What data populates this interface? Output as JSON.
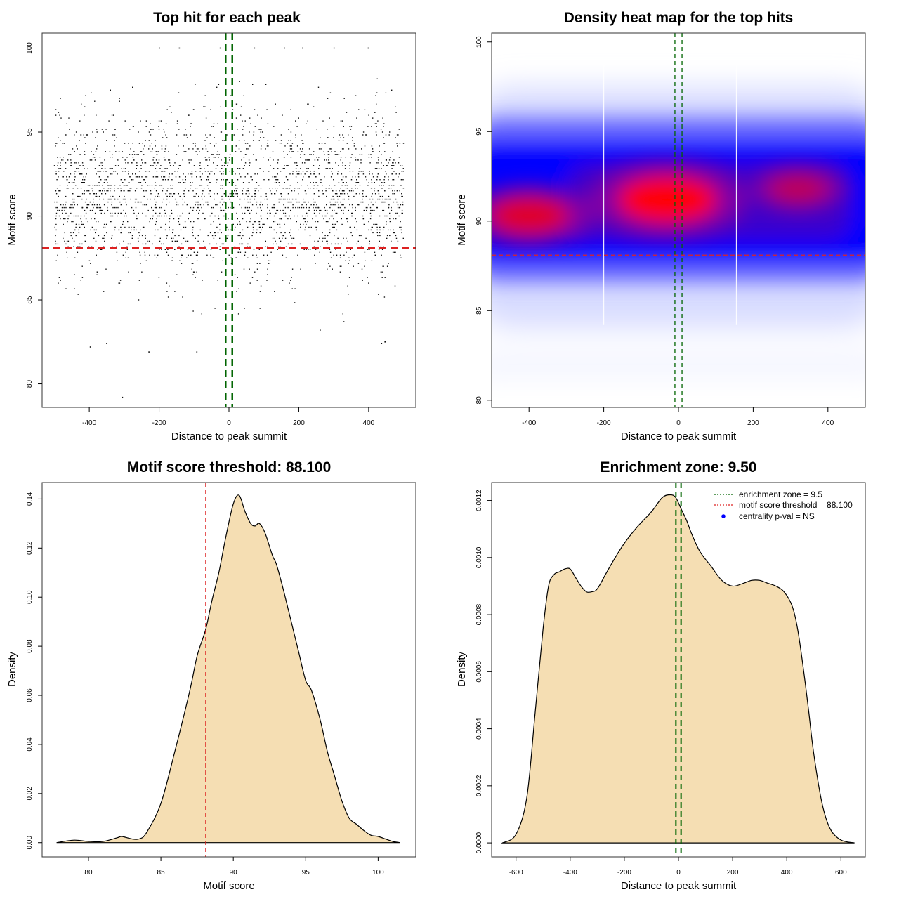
{
  "colors": {
    "threshold": "#dd2222",
    "zone": "#006400",
    "fill": "#f5deb3",
    "heat_low": "#0000ff",
    "heat_high": "#ff0000",
    "point": "#111111",
    "centrality_dot": "#0000ff"
  },
  "chart_data": [
    {
      "id": "scatter",
      "type": "scatter",
      "title": "Top hit for each peak",
      "xlabel": "Distance to peak summit",
      "ylabel": "Motif score",
      "xlim": [
        -535,
        535
      ],
      "ylim": [
        78.6,
        100.9
      ],
      "xticks": [
        -400,
        -200,
        0,
        200,
        400
      ],
      "yticks": [
        80,
        85,
        90,
        95,
        100
      ],
      "threshold_y": 88.1,
      "zone_x": [
        -9.5,
        9.5
      ],
      "n_points": 2600,
      "point_x_range": [
        -500,
        500
      ],
      "point_score_mean": 91.3,
      "point_score_sd": 2.4,
      "outliers": [
        {
          "x": -305,
          "y": 79.2
        },
        {
          "x": -397,
          "y": 82.2
        },
        {
          "x": -350,
          "y": 82.4
        },
        {
          "x": -229,
          "y": 81.9
        },
        {
          "x": -92,
          "y": 81.9
        },
        {
          "x": 261,
          "y": 83.2
        },
        {
          "x": 329,
          "y": 83.7
        },
        {
          "x": 437,
          "y": 82.4
        },
        {
          "x": 447,
          "y": 82.5
        },
        {
          "x": -199,
          "y": 100.0
        },
        {
          "x": -142,
          "y": 100.0
        },
        {
          "x": -25,
          "y": 100.0
        },
        {
          "x": 73,
          "y": 100.0
        },
        {
          "x": 159,
          "y": 100.0
        },
        {
          "x": 211,
          "y": 100.0
        },
        {
          "x": 301,
          "y": 100.0
        },
        {
          "x": 399,
          "y": 100.0
        }
      ]
    },
    {
      "id": "heatmap",
      "type": "heatmap",
      "title": "Density heat map for the top hits",
      "xlabel": "Distance to peak summit",
      "ylabel": "Motif score",
      "xlim": [
        -500,
        500
      ],
      "ylim": [
        79.6,
        100.5
      ],
      "xticks": [
        -400,
        -200,
        0,
        200,
        400
      ],
      "yticks": [
        80,
        85,
        90,
        95,
        100
      ],
      "threshold_y": 88.1,
      "zone_x": [
        -9.5,
        9.5
      ],
      "white_lines_x": [
        -200,
        155
      ],
      "hotspots": [
        {
          "x": -30,
          "y": 91.2,
          "intensity": 1.0
        },
        {
          "x": -400,
          "y": 90.3,
          "intensity": 0.75
        },
        {
          "x": 320,
          "y": 91.8,
          "intensity": 0.45
        }
      ]
    },
    {
      "id": "score_density",
      "type": "area",
      "title": "Motif score threshold: 88.100",
      "xlabel": "Motif score",
      "ylabel": "Density",
      "xlim": [
        76.8,
        102.6
      ],
      "ylim": [
        -0.0058,
        0.1467
      ],
      "xticks": [
        80,
        85,
        90,
        95,
        100
      ],
      "yticks": [
        0.0,
        0.02,
        0.04,
        0.06,
        0.08,
        0.1,
        0.12,
        0.14
      ],
      "ytick_labels": [
        "0.00",
        "0.02",
        "0.04",
        "0.06",
        "0.08",
        "0.10",
        "0.12",
        "0.14"
      ],
      "threshold_x": 88.1,
      "x": [
        77.8,
        79.0,
        80.0,
        81.0,
        82.0,
        82.3,
        83.0,
        83.5,
        84.0,
        85.0,
        86.0,
        87.0,
        87.5,
        88.1,
        88.5,
        89.0,
        89.5,
        90.0,
        90.4,
        90.8,
        91.2,
        91.5,
        91.8,
        92.2,
        92.7,
        93.0,
        93.5,
        94.0,
        94.5,
        95.0,
        95.4,
        96.0,
        96.5,
        97.0,
        97.5,
        98.0,
        98.5,
        99.0,
        99.5,
        100.0,
        100.5,
        101.0,
        101.5
      ],
      "y": [
        0.0,
        0.001,
        0.0005,
        0.0005,
        0.002,
        0.0025,
        0.0015,
        0.0015,
        0.004,
        0.016,
        0.038,
        0.062,
        0.076,
        0.087,
        0.098,
        0.11,
        0.125,
        0.138,
        0.1415,
        0.135,
        0.13,
        0.129,
        0.13,
        0.126,
        0.117,
        0.113,
        0.102,
        0.09,
        0.078,
        0.066,
        0.062,
        0.05,
        0.037,
        0.027,
        0.017,
        0.01,
        0.0075,
        0.005,
        0.003,
        0.0025,
        0.0015,
        0.0005,
        0.0
      ]
    },
    {
      "id": "distance_density",
      "type": "area",
      "title": "Enrichment zone: 9.50",
      "xlabel": "Distance to peak summit",
      "ylabel": "Density",
      "xlim": [
        -690,
        690
      ],
      "ylim": [
        -4.9e-05,
        0.001263
      ],
      "xticks": [
        -600,
        -400,
        -200,
        0,
        200,
        400,
        600
      ],
      "yticks": [
        0,
        0.0002,
        0.0004,
        0.0006,
        0.0008,
        0.001,
        0.0012
      ],
      "ytick_labels": [
        "0.0000",
        "0.0002",
        "0.0004",
        "0.0006",
        "0.0008",
        "0.0010",
        "0.0012"
      ],
      "zone_x": [
        -9.5,
        9.5
      ],
      "x": [
        -650,
        -600,
        -560,
        -530,
        -500,
        -480,
        -460,
        -440,
        -420,
        -400,
        -380,
        -360,
        -340,
        -320,
        -300,
        -270,
        -240,
        -200,
        -150,
        -100,
        -60,
        -30,
        -10,
        10,
        30,
        50,
        80,
        120,
        160,
        200,
        240,
        270,
        300,
        330,
        360,
        390,
        420,
        440,
        460,
        480,
        500,
        530,
        560,
        600,
        650
      ],
      "y": [
        0.0,
        3e-05,
        0.00016,
        0.00045,
        0.00075,
        0.0009,
        0.00094,
        0.00095,
        0.00096,
        0.00096,
        0.00093,
        0.0009,
        0.00088,
        0.00088,
        0.00089,
        0.00094,
        0.00099,
        0.00105,
        0.00111,
        0.00116,
        0.00121,
        0.00122,
        0.00121,
        0.00117,
        0.00113,
        0.00108,
        0.00102,
        0.00097,
        0.00092,
        0.0009,
        0.00091,
        0.00092,
        0.00092,
        0.00091,
        0.0009,
        0.00088,
        0.00083,
        0.00075,
        0.00062,
        0.00047,
        0.00031,
        0.00014,
        5e-05,
        1e-05,
        0.0
      ],
      "legend": {
        "position": "top-right",
        "entries": [
          {
            "label": "enrichment zone = 9.5",
            "style": "dotted-line",
            "color": "#006400"
          },
          {
            "label": "motif score threshold = 88.100",
            "style": "dotted-line",
            "color": "#dd2222"
          },
          {
            "label": "centrality p-val = NS",
            "style": "dot",
            "color": "#0000ff"
          }
        ]
      }
    }
  ]
}
